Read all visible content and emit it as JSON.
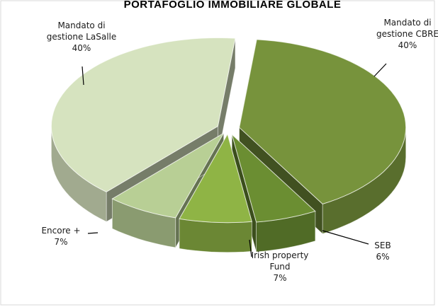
{
  "chart_data": {
    "type": "pie",
    "title": "PORTAFOGLIO IMMOBILIARE GLOBALE",
    "style": "3d-exploded",
    "slices": [
      {
        "name_lines": [
          "Mandato di",
          "gestione CBRE"
        ],
        "value_label": "40%",
        "value": 40,
        "color": "#77933c"
      },
      {
        "name_lines": [
          "SEB"
        ],
        "value_label": "6%",
        "value": 6,
        "color": "#6b8e32"
      },
      {
        "name_lines": [
          "Irish property",
          "Fund"
        ],
        "value_label": "7%",
        "value": 7,
        "color": "#8fb445"
      },
      {
        "name_lines": [
          "Encore +"
        ],
        "value_label": "7%",
        "value": 7,
        "color": "#b8cf95"
      },
      {
        "name_lines": [
          "Mandato di",
          "gestione LaSalle"
        ],
        "value_label": "40%",
        "value": 40,
        "color": "#d6e3bf"
      }
    ]
  }
}
